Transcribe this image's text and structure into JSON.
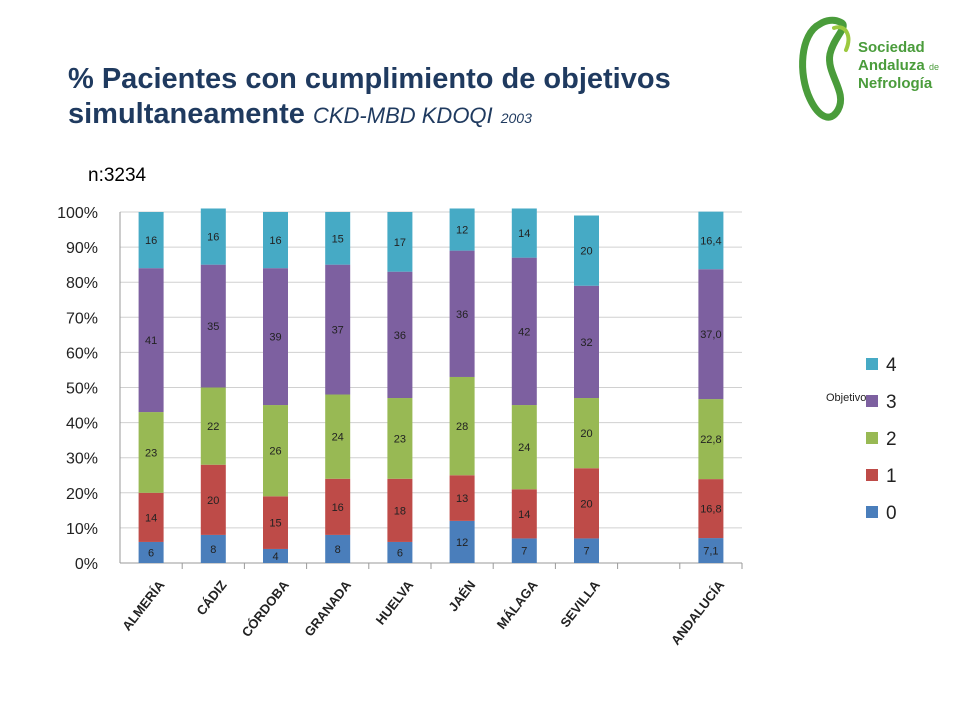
{
  "title": {
    "line1": "% Pacientes con cumplimiento de objetivos",
    "line2_bold": "simultaneamente",
    "line2_sub": "CKD-MBD KDOQI",
    "line2_year": "2003"
  },
  "n_label": "n:3234",
  "logo": {
    "line1": "Sociedad",
    "line2a": "Andaluza",
    "line2b": "de",
    "line3": "Nefrología",
    "color": "#4a9c3b"
  },
  "chart_data": {
    "type": "bar",
    "stacked": true,
    "percent_scale": true,
    "categories": [
      "ALMERÍA",
      "CÁDIZ",
      "CÓRDOBA",
      "GRANADA",
      "HUELVA",
      "JAÉN",
      "MÁLAGA",
      "SEVILLA",
      "",
      "ANDALUCÍA"
    ],
    "y_ticks": [
      "0%",
      "10%",
      "20%",
      "30%",
      "40%",
      "50%",
      "60%",
      "70%",
      "80%",
      "90%",
      "100%"
    ],
    "ylim": [
      0,
      100
    ],
    "grid": true,
    "legend_title": "Objetivo",
    "legend_position": "right",
    "series": [
      {
        "name": "0",
        "color": "#4a7ebb",
        "values": [
          6,
          8,
          4,
          8,
          6,
          12,
          7,
          7,
          null,
          7.1
        ],
        "labels": [
          "6",
          "8",
          "4",
          "8",
          "6",
          "12",
          "7",
          "7",
          "",
          "7,1"
        ]
      },
      {
        "name": "1",
        "color": "#be4b48",
        "values": [
          14,
          20,
          15,
          16,
          18,
          13,
          14,
          20,
          null,
          16.8
        ],
        "labels": [
          "14",
          "20",
          "15",
          "16",
          "18",
          "13",
          "14",
          "20",
          "",
          "16,8"
        ]
      },
      {
        "name": "2",
        "color": "#98b954",
        "values": [
          23,
          22,
          26,
          24,
          23,
          28,
          24,
          20,
          null,
          22.8
        ],
        "labels": [
          "23",
          "22",
          "26",
          "24",
          "23",
          "28",
          "24",
          "20",
          "",
          "22,8"
        ]
      },
      {
        "name": "3",
        "color": "#7d60a0",
        "values": [
          41,
          35,
          39,
          37,
          36,
          36,
          42,
          32,
          null,
          37.0
        ],
        "labels": [
          "41",
          "35",
          "39",
          "37",
          "36",
          "36",
          "42",
          "32",
          "",
          "37,0"
        ]
      },
      {
        "name": "4",
        "color": "#46aac5",
        "values": [
          16,
          16,
          16,
          15,
          17,
          12,
          14,
          20,
          null,
          16.4
        ],
        "labels": [
          "16",
          "16",
          "16",
          "15",
          "17",
          "12",
          "14",
          "20",
          "",
          "16,4"
        ]
      }
    ]
  }
}
